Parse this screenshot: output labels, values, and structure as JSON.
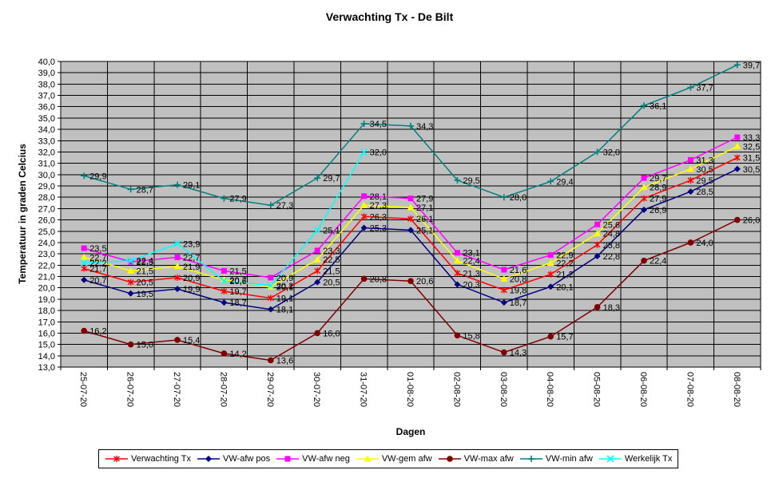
{
  "chart_data": {
    "type": "line",
    "title": "Verwachting Tx - De Bilt",
    "xlabel": "Dagen",
    "ylabel": "Temperatuur in graden Celcius",
    "ylim": [
      13.0,
      40.0
    ],
    "ytick_step": 1.0,
    "decimal_separator": ",",
    "grid": true,
    "plot_bg_color": "#c0c0c0",
    "gridline_color": "#000000",
    "legend_position": "bottom",
    "data_labels": true,
    "categories": [
      "25-07-20",
      "26-07-20",
      "27-07-20",
      "28-07-20",
      "29-07-20",
      "30-07-20",
      "31-07-20",
      "01-08-20",
      "02-08-20",
      "03-08-20",
      "04-08-20",
      "05-08-20",
      "06-08-20",
      "07-08-20",
      "08-08-20"
    ],
    "series": [
      {
        "name": "Verwachting Tx",
        "color": "#ff0000",
        "marker": "star",
        "values": [
          21.7,
          20.5,
          20.9,
          19.7,
          19.1,
          21.5,
          26.3,
          26.1,
          21.3,
          19.8,
          21.2,
          23.8,
          27.9,
          29.5,
          31.5
        ]
      },
      {
        "name": "VW-afw pos",
        "color": "#000080",
        "marker": "diamond",
        "values": [
          20.7,
          19.5,
          19.9,
          18.7,
          18.1,
          20.5,
          25.3,
          25.1,
          20.3,
          18.7,
          20.1,
          22.8,
          26.9,
          28.5,
          30.5
        ]
      },
      {
        "name": "VW-afw neg",
        "color": "#ff00ff",
        "marker": "square",
        "values": [
          23.5,
          22.3,
          22.7,
          21.5,
          20.9,
          23.3,
          28.1,
          27.9,
          23.1,
          21.6,
          22.9,
          25.6,
          29.7,
          31.3,
          33.3
        ]
      },
      {
        "name": "VW-gem afw",
        "color": "#ffff00",
        "marker": "triangle",
        "values": [
          22.7,
          21.5,
          21.9,
          20.7,
          20.1,
          22.5,
          27.3,
          27.1,
          22.4,
          20.8,
          22.2,
          24.8,
          28.9,
          30.5,
          32.5
        ]
      },
      {
        "name": "VW-max afw",
        "color": "#800000",
        "marker": "circle",
        "values": [
          16.2,
          15.0,
          15.4,
          14.2,
          13.6,
          16.0,
          20.8,
          20.6,
          15.8,
          14.3,
          15.7,
          18.3,
          22.4,
          24.0,
          26.0
        ]
      },
      {
        "name": "VW-min afw",
        "color": "#008080",
        "marker": "plus",
        "values": [
          29.9,
          28.7,
          29.1,
          27.9,
          27.3,
          29.7,
          34.5,
          34.3,
          29.5,
          28.0,
          29.4,
          32.0,
          36.1,
          37.7,
          39.7
        ]
      },
      {
        "name": "Werkelijk Tx",
        "color": "#00ffff",
        "marker": "x",
        "values": [
          22.2,
          22.4,
          23.9,
          20.6,
          20.2,
          25.1,
          32.0,
          null,
          null,
          null,
          null,
          null,
          null,
          null,
          null
        ]
      }
    ]
  }
}
